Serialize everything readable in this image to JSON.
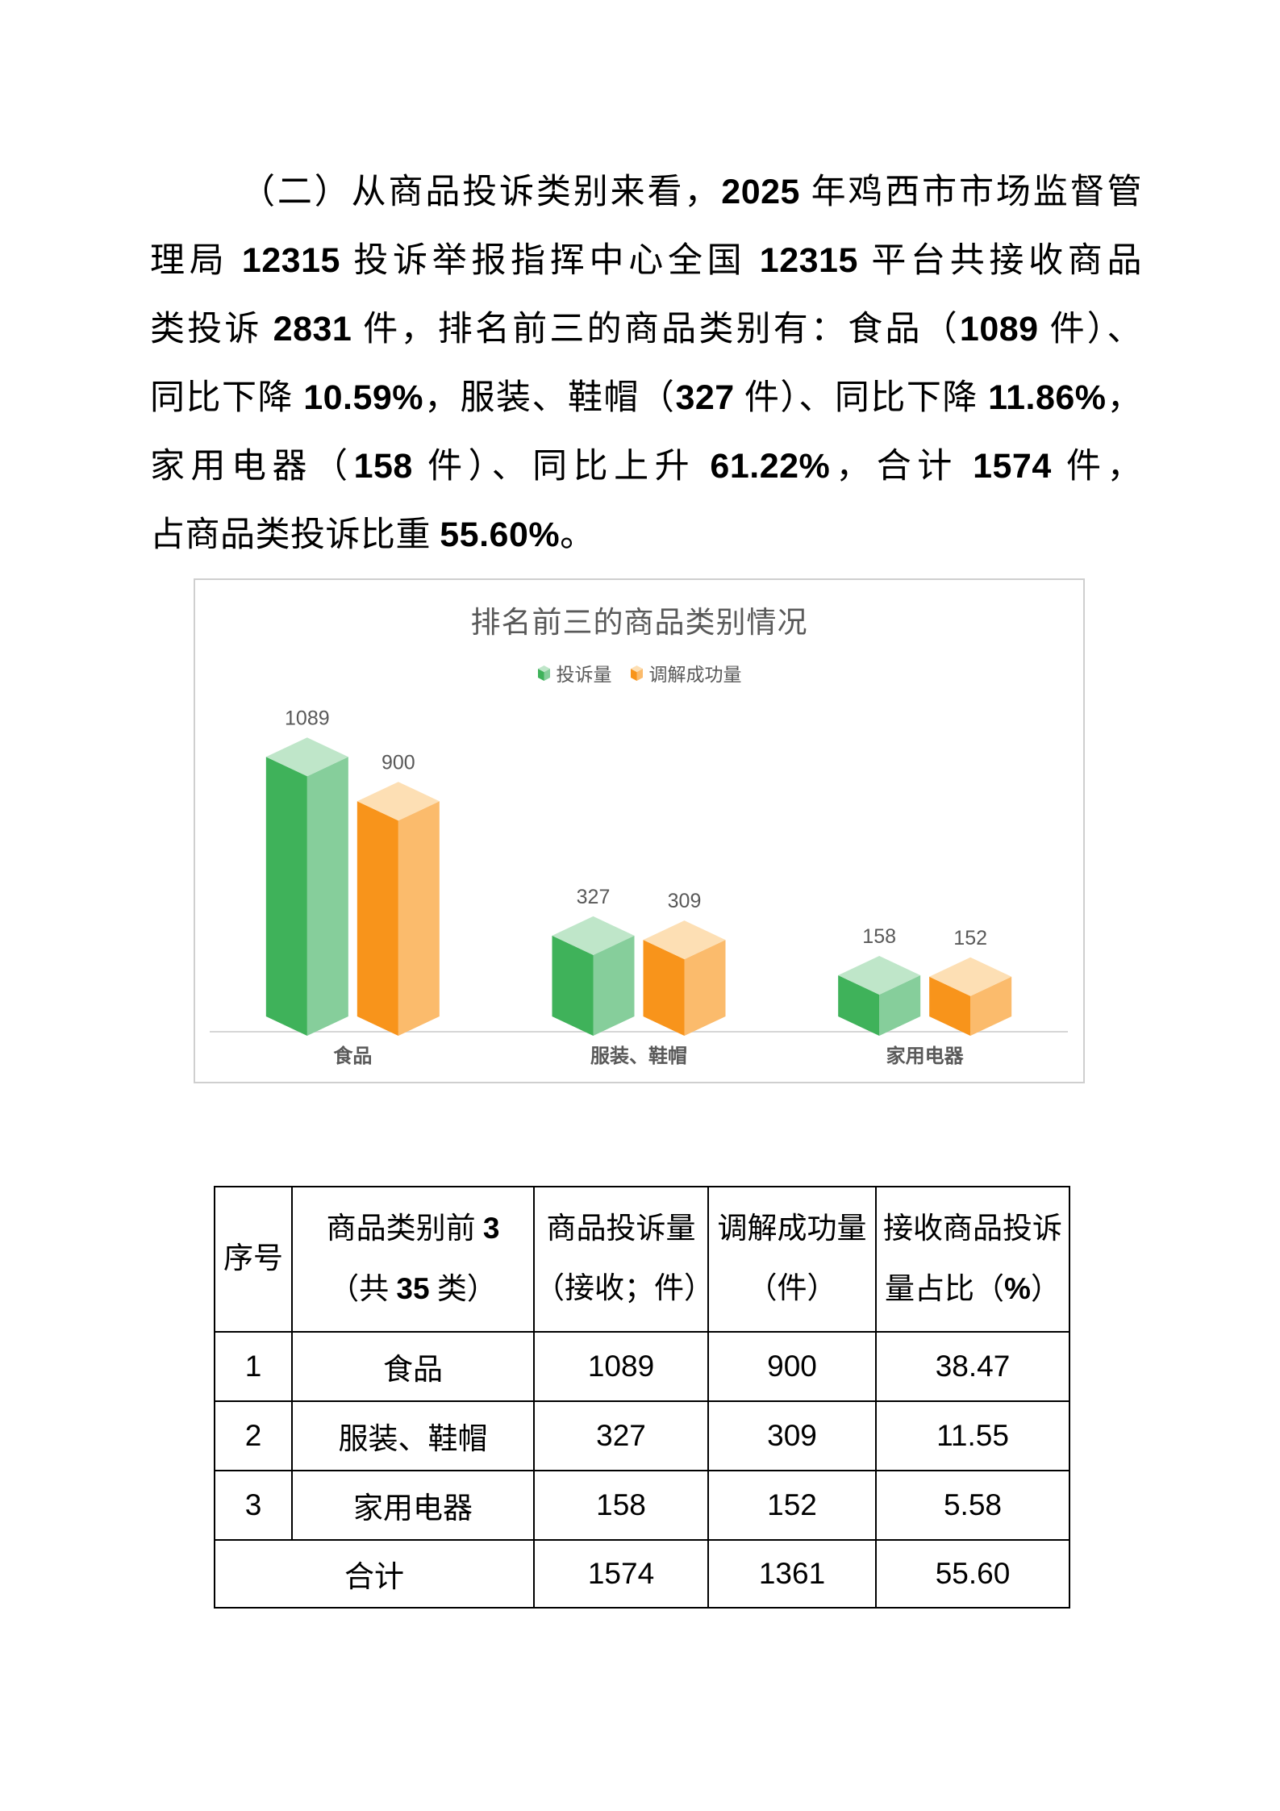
{
  "paragraph": {
    "lines": [
      "（二）从商品投诉类别来看，2025 年鸡西市市场监督管",
      "理局 12315 投诉举报指挥中心全国 12315 平台共接收商品",
      "类投诉 2831 件，排名前三的商品类别有：食品（1089 件）、",
      "同比下降 10.59%，服装、鞋帽（327 件）、同比下降 11.86%，",
      "家用电器（158 件）、同比上升 61.22%，合计 1574 件，",
      "占商品类投诉比重 55.60%。"
    ]
  },
  "chart_data": {
    "type": "bar",
    "style": "3d-column",
    "title": "排名前三的商品类别情况",
    "categories": [
      "食品",
      "服装、鞋帽",
      "家用电器"
    ],
    "series": [
      {
        "name": "投诉量",
        "values": [
          1089,
          327,
          158
        ],
        "colors": {
          "left": "#3FB25A",
          "right": "#86CE9B",
          "top": "#BFE6C9"
        }
      },
      {
        "name": "调解成功量",
        "values": [
          900,
          309,
          152
        ],
        "colors": {
          "left": "#F8941B",
          "right": "#FBBB6C",
          "top": "#FDDFB4"
        }
      }
    ],
    "ylim": [
      0,
      1200
    ],
    "grid": false,
    "legend_position": "top",
    "data_labels": true,
    "xlabel": "",
    "ylabel": "",
    "text_color": "#595959",
    "axis_color": "#D6D6D6"
  },
  "table": {
    "headers": [
      {
        "line1": "序号",
        "line2": ""
      },
      {
        "line1": "商品类别前 3",
        "line2": "（共 35 类）"
      },
      {
        "line1": "商品投诉量",
        "line2": "（接收；件）"
      },
      {
        "line1": "调解成功量",
        "line2": "（件）"
      },
      {
        "line1": "接收商品投诉",
        "line2": "量占比（%）"
      }
    ],
    "rows": [
      {
        "no": "1",
        "category": "食品",
        "complaints": "1089",
        "mediated": "900",
        "share": "38.47"
      },
      {
        "no": "2",
        "category": "服装、鞋帽",
        "complaints": "327",
        "mediated": "309",
        "share": "11.55"
      },
      {
        "no": "3",
        "category": "家用电器",
        "complaints": "158",
        "mediated": "152",
        "share": "5.58"
      }
    ],
    "total_row": {
      "label": "合计",
      "complaints": "1574",
      "mediated": "1361",
      "share": "55.60"
    }
  }
}
